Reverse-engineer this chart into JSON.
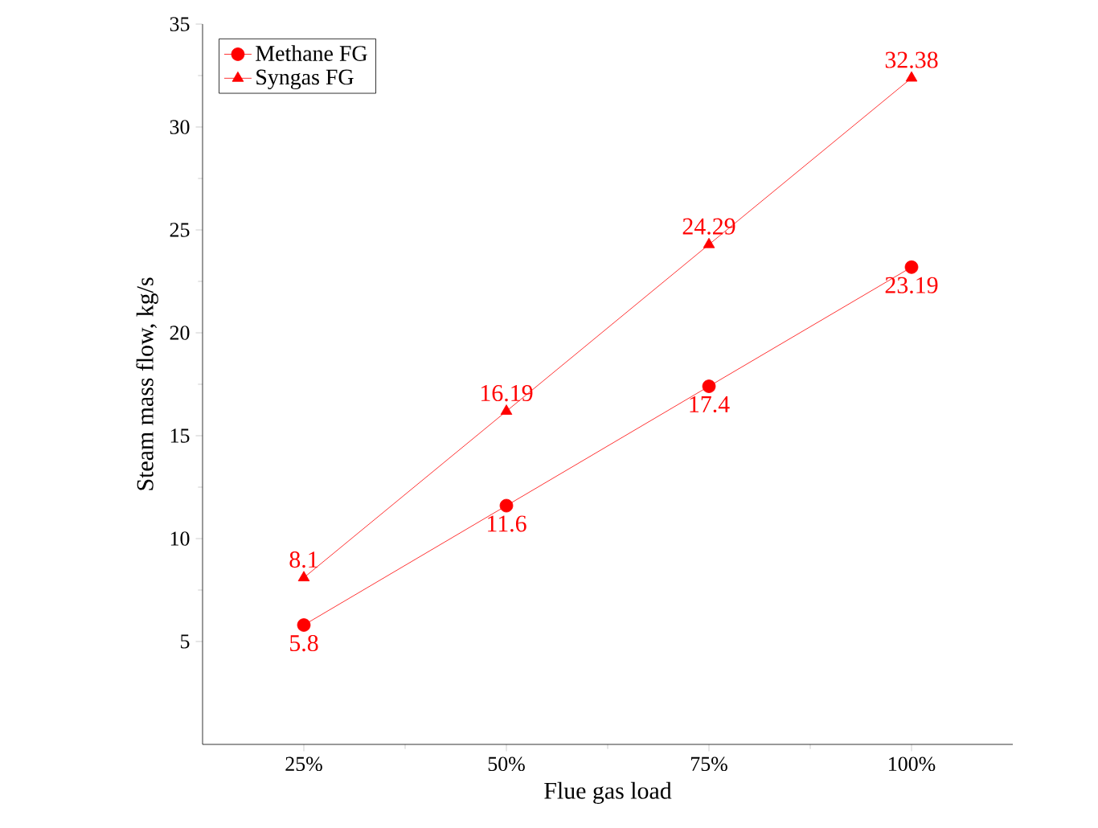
{
  "chart_data": {
    "type": "line",
    "xlabel": "Flue gas load",
    "ylabel": "Steam mass flow, kg/s",
    "categories": [
      "25%",
      "50%",
      "75%",
      "100%"
    ],
    "series": [
      {
        "name": "Methane FG",
        "color": "#ff0000",
        "marker": "circle",
        "values": [
          5.8,
          11.6,
          17.4,
          23.19
        ]
      },
      {
        "name": "Syngas FG",
        "color": "#ff0000",
        "marker": "triangle",
        "values": [
          8.1,
          16.19,
          24.29,
          32.38
        ]
      }
    ],
    "ylim": [
      0,
      35
    ],
    "yticks": [
      5,
      10,
      15,
      20,
      25,
      30,
      35
    ],
    "data_labels": true,
    "legend": "top left",
    "grid": false,
    "line_style": "solid"
  }
}
